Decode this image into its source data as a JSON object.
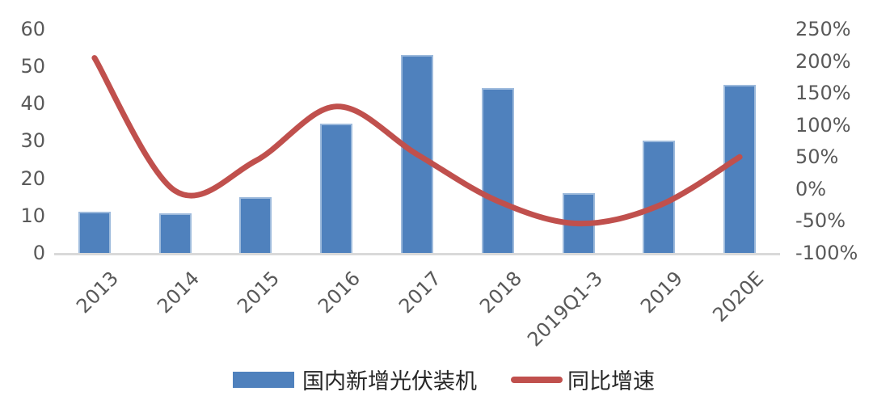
{
  "chart_data": {
    "type": "bar",
    "subtype": "combo-bar-line",
    "title": "",
    "categories": [
      "2013",
      "2014",
      "2015",
      "2016",
      "2017",
      "2018",
      "2019Q1-3",
      "2019",
      "2020E"
    ],
    "series": [
      {
        "name": "国内新增光伏装机",
        "type": "bar",
        "axis": "left",
        "values": [
          11,
          10.5,
          15,
          34.5,
          53,
          44,
          16,
          30,
          45
        ]
      },
      {
        "name": "同比增速",
        "type": "line",
        "axis": "right",
        "values_pct": [
          205,
          -3,
          44,
          129,
          54,
          -19,
          -54,
          -26,
          50
        ]
      }
    ],
    "left_axis": {
      "min": 0,
      "max": 60,
      "ticks": [
        0,
        10,
        20,
        30,
        40,
        50,
        60
      ]
    },
    "right_axis": {
      "min_pct": -100,
      "max_pct": 250,
      "ticks": [
        {
          "label": "250%",
          "value": 250
        },
        {
          "label": "200%",
          "value": 200
        },
        {
          "label": "150%",
          "value": 150
        },
        {
          "label": "100%",
          "value": 100
        },
        {
          "label": "50%",
          "value": 50
        },
        {
          "label": "0%",
          "value": 0
        },
        {
          "label": "-50%",
          "value": -50
        },
        {
          "label": "-100%",
          "value": -100
        }
      ]
    },
    "grid": false,
    "legend_position": "bottom"
  },
  "legend": {
    "bar_label": "国内新增光伏装机",
    "line_label": "同比增速"
  },
  "colors": {
    "bar": "#4F81BD",
    "bar_border": "#9DBADC",
    "line": "#C0504D",
    "axis_text": "#595959",
    "axis_line": "#D9D9D9",
    "background": "#FFFFFF"
  }
}
